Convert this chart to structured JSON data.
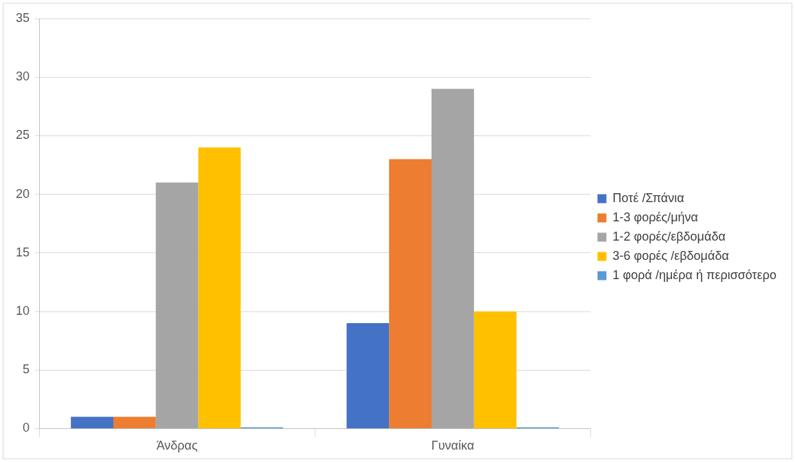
{
  "chart_data": {
    "type": "bar",
    "categories": [
      "Άνδρας",
      "Γυναίκα"
    ],
    "series": [
      {
        "name": "Ποτέ /Σπάνια",
        "color": "#4472c4",
        "values": [
          1,
          9
        ]
      },
      {
        "name": "1-3 φορές/μήνα",
        "color": "#ed7d31",
        "values": [
          1,
          23
        ]
      },
      {
        "name": "1-2 φορές/εβδομάδα",
        "color": "#a5a5a5",
        "values": [
          21,
          29
        ]
      },
      {
        "name": "3-6 φορές /εβδομάδα",
        "color": "#ffc000",
        "values": [
          24,
          10
        ]
      },
      {
        "name": "1 φορά /ημέρα ή περισσότερο",
        "color": "#5b9bd5",
        "values": [
          0,
          0
        ]
      }
    ],
    "ylim": [
      0,
      35
    ],
    "yticks": [
      0,
      5,
      10,
      15,
      20,
      25,
      30,
      35
    ],
    "grid": "y",
    "legend": "right"
  }
}
